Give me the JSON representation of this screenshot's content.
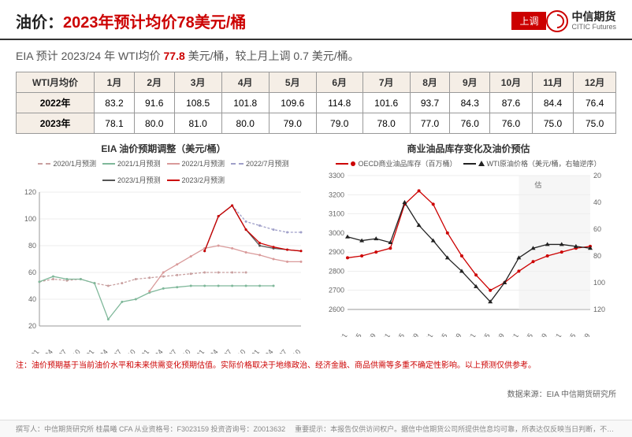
{
  "header": {
    "title_prefix": "油价：",
    "title_main": "2023年预计均价78美元/桶",
    "badge": "上调",
    "brand": "中信期货",
    "brand_en": "CITIC Futures"
  },
  "subtitle": {
    "prefix": "EIA 预计 2023/24 年 WTI均价 ",
    "value": "77.8",
    "suffix": " 美元/桶，较上月上调 0.7 美元/桶。"
  },
  "table": {
    "header_label": "WTI月均价",
    "months": [
      "1月",
      "2月",
      "3月",
      "4月",
      "5月",
      "6月",
      "7月",
      "8月",
      "9月",
      "10月",
      "11月",
      "12月"
    ],
    "rows": [
      {
        "label": "2022年",
        "values": [
          83.2,
          91.6,
          108.5,
          101.8,
          109.6,
          114.8,
          101.6,
          93.7,
          84.3,
          87.6,
          84.4,
          76.4
        ]
      },
      {
        "label": "2023年",
        "values": [
          78.1,
          80.0,
          81.0,
          80.0,
          79.0,
          79.0,
          78.0,
          77.0,
          76.0,
          76.0,
          75.0,
          75.0
        ]
      }
    ]
  },
  "chart_left": {
    "title": "EIA 油价预期调整（美元/桶）",
    "ylim": [
      20,
      120
    ],
    "ytick_step": 20,
    "x_labels": [
      "2019/01",
      "2019/04",
      "2019/07",
      "2019/10",
      "2020/01",
      "2020/04",
      "2020/07",
      "2020/10",
      "2021/01",
      "2021/04",
      "2021/07",
      "2021/10",
      "2022/01",
      "2022/04",
      "2022/07",
      "2022/10",
      "2023/01",
      "2023/04",
      "2023/07",
      "2023/10"
    ],
    "series": [
      {
        "name": "2020/1月预测",
        "color": "#c9a0a0",
        "dash": "3,2",
        "values": [
          53,
          55,
          54,
          55,
          52,
          50,
          52,
          55,
          56,
          57,
          58,
          59,
          60,
          60,
          60,
          60,
          null,
          null,
          null,
          null
        ]
      },
      {
        "name": "2021/1月预测",
        "color": "#7fb89a",
        "dash": "",
        "values": [
          53,
          57,
          55,
          55,
          52,
          25,
          38,
          40,
          45,
          48,
          49,
          50,
          50,
          50,
          50,
          50,
          50,
          50,
          null,
          null
        ]
      },
      {
        "name": "2022/1月预测",
        "color": "#d99a9a",
        "dash": "",
        "values": [
          null,
          null,
          null,
          null,
          null,
          null,
          null,
          null,
          46,
          60,
          66,
          72,
          78,
          80,
          78,
          75,
          73,
          70,
          68,
          68
        ]
      },
      {
        "name": "2022/7月预测",
        "color": "#a0a0c9",
        "dash": "3,2",
        "values": [
          null,
          null,
          null,
          null,
          null,
          null,
          null,
          null,
          null,
          null,
          null,
          null,
          76,
          102,
          110,
          98,
          95,
          92,
          90,
          90
        ]
      },
      {
        "name": "2023/1月预测",
        "color": "#555",
        "dash": "",
        "values": [
          null,
          null,
          null,
          null,
          null,
          null,
          null,
          null,
          null,
          null,
          null,
          null,
          76,
          102,
          110,
          92,
          80,
          78,
          77,
          76
        ]
      },
      {
        "name": "2023/2月预测",
        "color": "#c00",
        "dash": "",
        "values": [
          null,
          null,
          null,
          null,
          null,
          null,
          null,
          null,
          null,
          null,
          null,
          null,
          76,
          102,
          110,
          92,
          82,
          79,
          77,
          76
        ]
      }
    ]
  },
  "chart_right": {
    "title": "商业油品库存变化及油价预估",
    "y1_lim": [
      2600,
      3300
    ],
    "y1_step": 100,
    "y2_lim": [
      20,
      120
    ],
    "y2_step": 20,
    "y2_reversed": true,
    "x_labels": [
      "201901",
      "201905",
      "201909",
      "202001",
      "202005",
      "202009",
      "202101",
      "202105",
      "202109",
      "202201",
      "202205",
      "202209",
      "202301",
      "202305",
      "202309",
      "202401",
      "202405",
      "202409"
    ],
    "est_label": "估",
    "series": [
      {
        "name": "OECD商业油品库存（百万桶）",
        "color": "#c00",
        "marker": "circle",
        "values": [
          2870,
          2880,
          2900,
          2920,
          3150,
          3220,
          3150,
          3000,
          2880,
          2780,
          2700,
          2740,
          2800,
          2850,
          2880,
          2900,
          2920,
          2930
        ]
      },
      {
        "name": "WTI原油价格（美元/桶，右轴逆序）",
        "color": "#222",
        "marker": "triangle",
        "values": [
          2980,
          2960,
          2970,
          2950,
          3160,
          3040,
          2960,
          2870,
          2800,
          2720,
          2640,
          2740,
          2870,
          2920,
          2940,
          2940,
          2930,
          2920
        ]
      }
    ]
  },
  "note": "注：油价预期基于当前油价水平和未来供需变化预期估值。实际价格取决于地缘政治、经济金融、商品供需等多重不确定性影响。以上预测仅供参考。",
  "source": "数据来源：EIA 中信期货研究所",
  "footer": {
    "author": "撰写人：中信期货研究所  桂晨曦 CFA  从业资格号：F3023159  投资咨询号：Z0013632",
    "disclaimer": "重要提示：本报告仅供访问权户。据信中信期货公司所提供信息均可靠，所表达仅反映当日判断，不作为买卖依据。报告中内容和意见仅供参考，投资有风险，投资须谨慎。"
  },
  "colors": {
    "accent": "#c00",
    "border": "#999",
    "text": "#333"
  }
}
